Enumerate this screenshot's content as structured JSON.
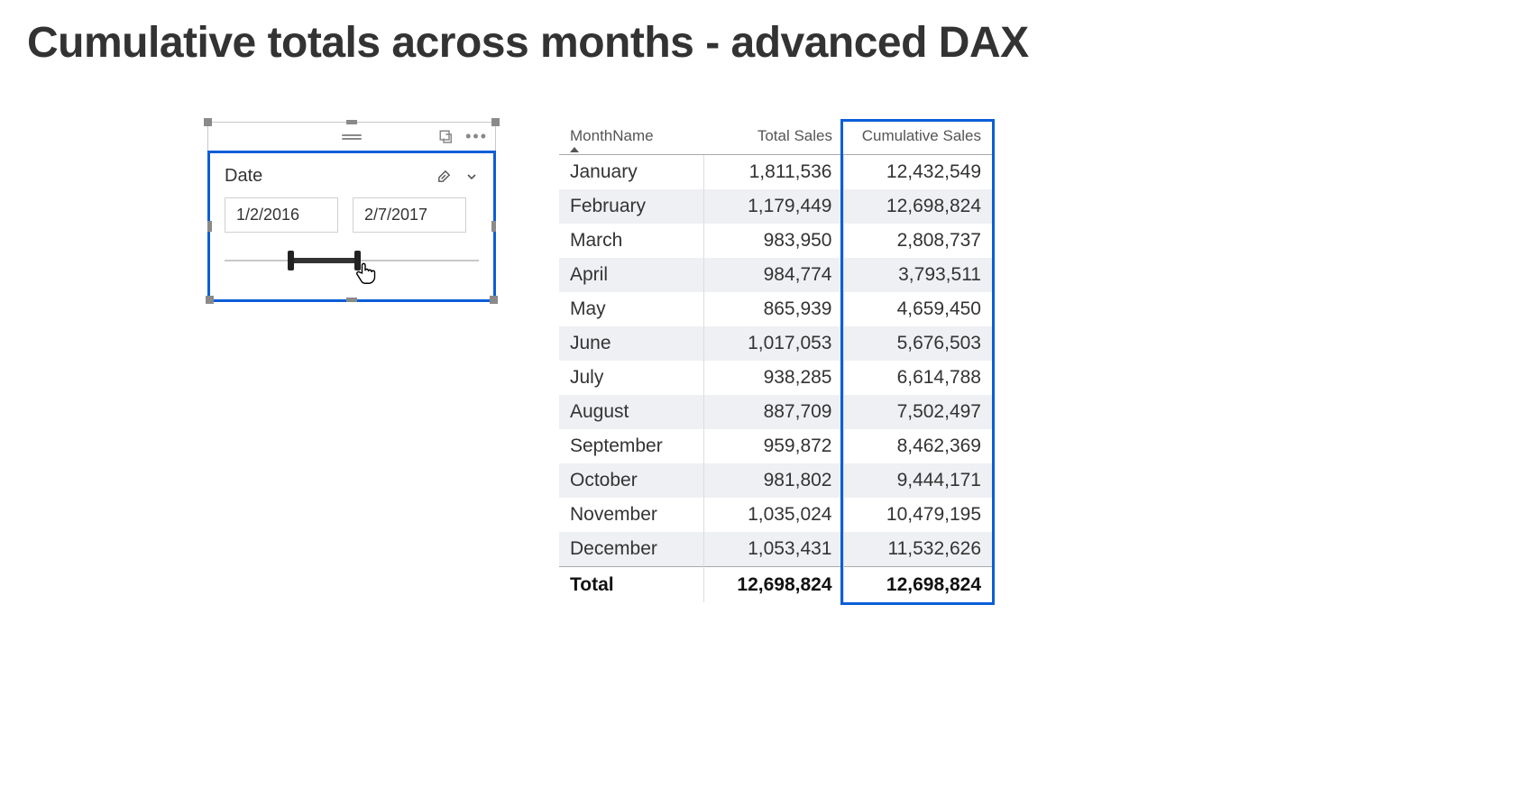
{
  "page": {
    "title": "Cumulative totals across months - advanced DAX"
  },
  "slicer": {
    "field_label": "Date",
    "start_date": "1/2/2016",
    "end_date": "2/7/2017",
    "track_min_pct": 26,
    "track_max_pct": 52,
    "border_color": "#0b5ed7"
  },
  "table": {
    "columns": [
      "MonthName",
      "Total Sales",
      "Cumulative Sales"
    ],
    "sort_column_index": 0,
    "sort_direction": "asc",
    "rows": [
      {
        "month": "January",
        "total": "1,811,536",
        "cumulative": "12,432,549"
      },
      {
        "month": "February",
        "total": "1,179,449",
        "cumulative": "12,698,824"
      },
      {
        "month": "March",
        "total": "983,950",
        "cumulative": "2,808,737"
      },
      {
        "month": "April",
        "total": "984,774",
        "cumulative": "3,793,511"
      },
      {
        "month": "May",
        "total": "865,939",
        "cumulative": "4,659,450"
      },
      {
        "month": "June",
        "total": "1,017,053",
        "cumulative": "5,676,503"
      },
      {
        "month": "July",
        "total": "938,285",
        "cumulative": "6,614,788"
      },
      {
        "month": "August",
        "total": "887,709",
        "cumulative": "7,502,497"
      },
      {
        "month": "September",
        "total": "959,872",
        "cumulative": "8,462,369"
      },
      {
        "month": "October",
        "total": "981,802",
        "cumulative": "9,444,171"
      },
      {
        "month": "November",
        "total": "1,035,024",
        "cumulative": "10,479,195"
      },
      {
        "month": "December",
        "total": "1,053,431",
        "cumulative": "11,532,626"
      }
    ],
    "total_row": {
      "label": "Total",
      "total": "12,698,824",
      "cumulative": "12,698,824"
    },
    "row_alt_bg": "#eef0f3",
    "highlight_column_index": 2,
    "highlight_color": "#0b5ed7"
  }
}
